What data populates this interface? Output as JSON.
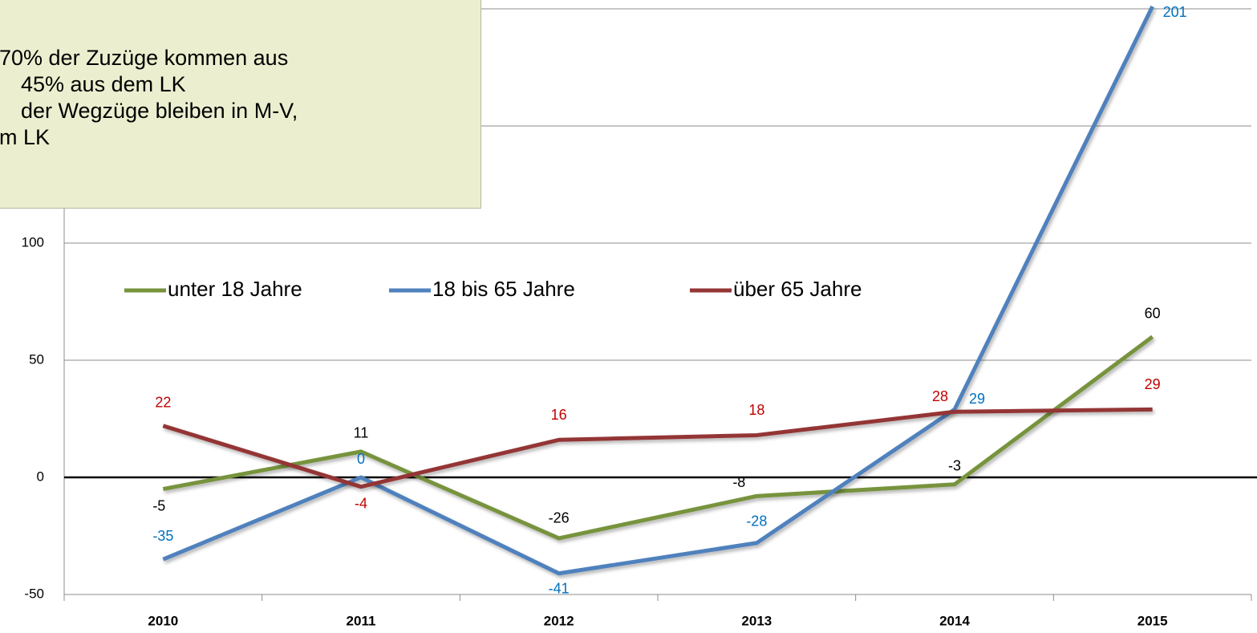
{
  "chart_data": {
    "type": "line",
    "categories": [
      "2010",
      "2011",
      "2012",
      "2013",
      "2014",
      "2015"
    ],
    "series": [
      {
        "name": "unter 18 Jahre",
        "color": "#77933c",
        "label_color": "#000000",
        "values": [
          -5,
          11,
          -26,
          -8,
          -3,
          60
        ]
      },
      {
        "name": "18 bis 65 Jahre",
        "color": "#4f81bd",
        "label_color": "#0070c0",
        "values": [
          -35,
          0,
          -41,
          -28,
          29,
          201
        ]
      },
      {
        "name": "über 65 Jahre",
        "color": "#943634",
        "label_color": "#c00000",
        "values": [
          22,
          -4,
          16,
          18,
          28,
          29
        ]
      }
    ],
    "ylim": [
      -50,
      200
    ],
    "yticks": [
      -50,
      0,
      50,
      100,
      150,
      200
    ],
    "grid": true,
    "legend": "top-left",
    "annotation": [
      "70% der Zuzüge kommen aus",
      "45% aus dem LK",
      "der Wegzüge bleiben in M-V,",
      "m LK"
    ]
  }
}
